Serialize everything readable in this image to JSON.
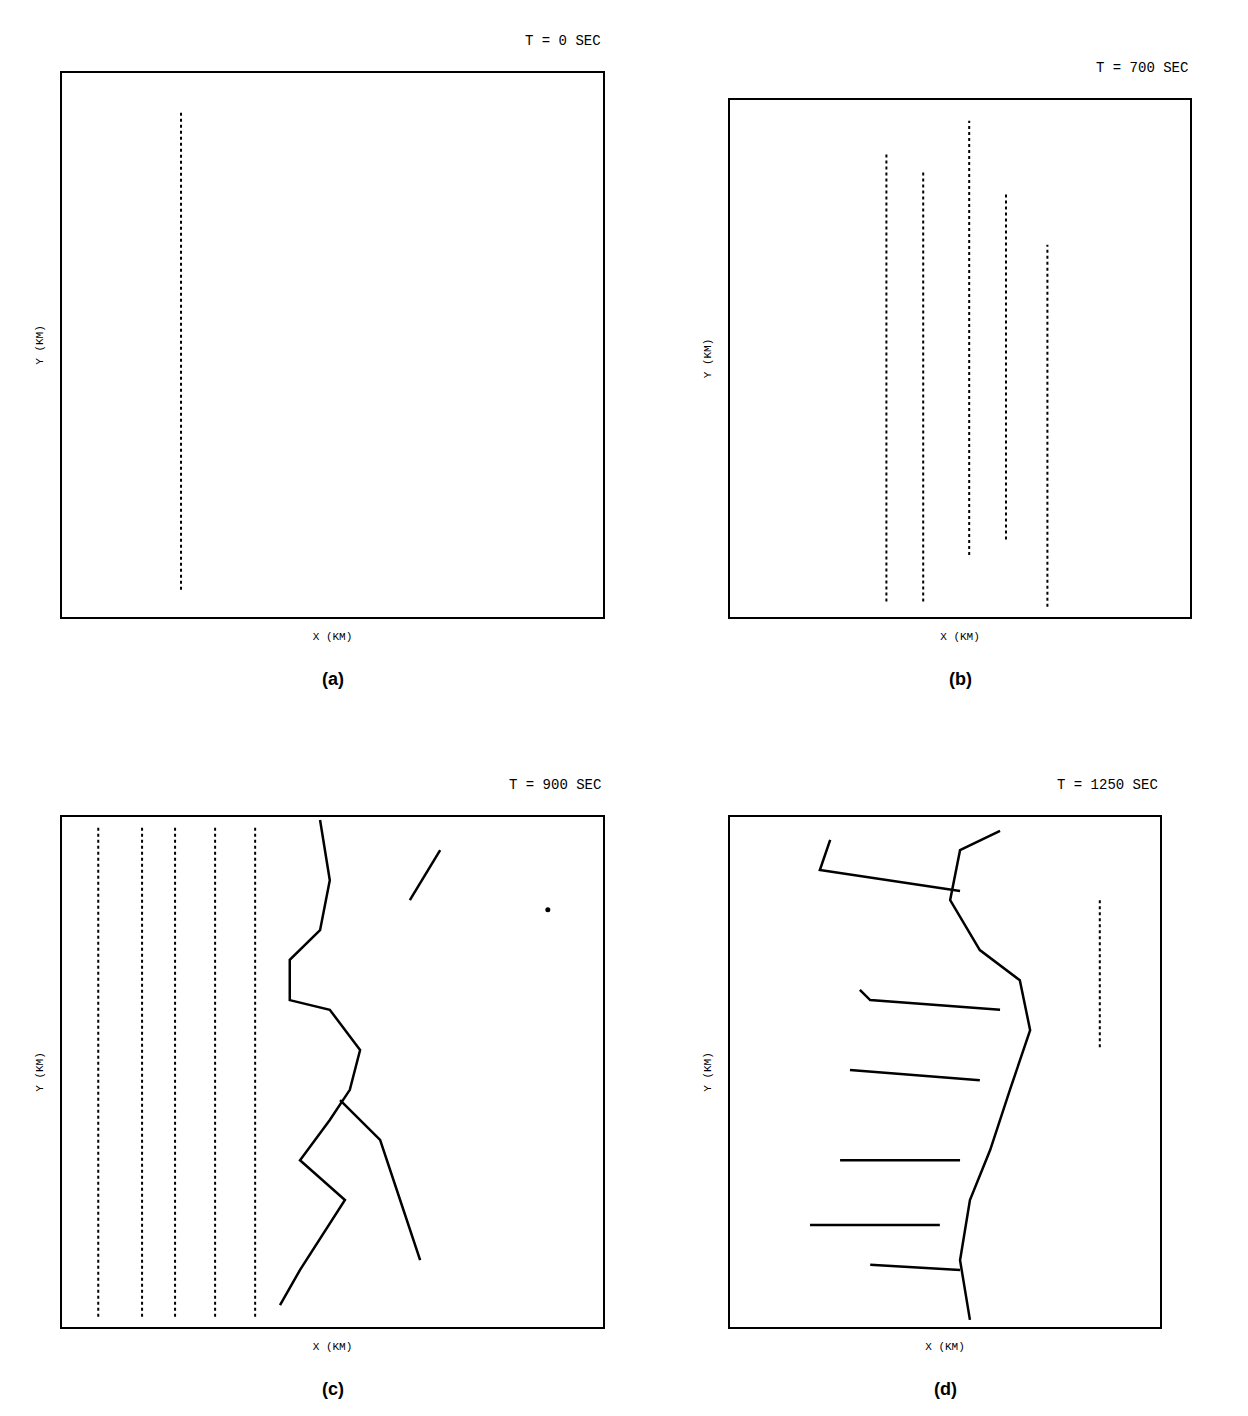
{
  "chart_data": [
    {
      "type": "line",
      "title": "T = 0 SEC",
      "label": "(a)",
      "x_label": "X (KM)",
      "y_label": "Y (KM)",
      "xlim": [
        0,
        10
      ],
      "ylim": [
        0,
        10
      ],
      "tick_labels": false,
      "color": "#000000",
      "series": [
        {
          "line_style": "dot",
          "x": [
            2.2,
            2.2
          ],
          "y": [
            0.5,
            9.3
          ]
        }
      ]
    },
    {
      "type": "line",
      "title": "T = 700 SEC",
      "label": "(b)",
      "x_label": "X (KM)",
      "y_label": "Y (KM)",
      "xlim": [
        0,
        10
      ],
      "ylim": [
        0,
        10
      ],
      "tick_labels": false,
      "color": "#000000",
      "series": [
        {
          "line_style": "dot",
          "x": [
            3.4,
            3.4
          ],
          "y": [
            0.3,
            9.0
          ]
        },
        {
          "line_style": "dot",
          "x": [
            4.2,
            4.2
          ],
          "y": [
            0.3,
            8.6
          ]
        },
        {
          "line_style": "dot",
          "x": [
            5.2,
            5.2
          ],
          "y": [
            1.2,
            9.6
          ]
        },
        {
          "line_style": "dot",
          "x": [
            6.0,
            6.0
          ],
          "y": [
            1.5,
            8.2
          ]
        },
        {
          "line_style": "dot",
          "x": [
            6.9,
            6.9
          ],
          "y": [
            0.2,
            7.2
          ]
        }
      ]
    },
    {
      "type": "line",
      "title": "T = 900 SEC",
      "label": "(c)",
      "x_label": "X (KM)",
      "y_label": "Y (KM)",
      "xlim": [
        0,
        10
      ],
      "ylim": [
        0,
        10
      ],
      "tick_labels": false,
      "color": "#000000",
      "series": [
        {
          "line_style": "dot",
          "x": [
            0.67,
            0.67
          ],
          "y": [
            0.2,
            9.8
          ]
        },
        {
          "line_style": "dot",
          "x": [
            1.48,
            1.48
          ],
          "y": [
            0.2,
            9.8
          ]
        },
        {
          "line_style": "dot",
          "x": [
            2.09,
            2.09
          ],
          "y": [
            0.2,
            9.8
          ]
        },
        {
          "line_style": "dot",
          "x": [
            2.83,
            2.83
          ],
          "y": [
            0.2,
            9.8
          ]
        },
        {
          "line_style": "dot",
          "x": [
            3.57,
            3.57
          ],
          "y": [
            0.2,
            9.8
          ]
        },
        {
          "line_style": "solid",
          "x": [
            4.03,
            4.4,
            5.23,
            4.4,
            4.95,
            5.32,
            5.51,
            4.95,
            4.21,
            4.21,
            4.77,
            4.95,
            4.77
          ],
          "y": [
            0.43,
            1.12,
            2.49,
            3.27,
            4.06,
            4.65,
            5.43,
            6.22,
            6.41,
            7.2,
            7.78,
            8.76,
            9.94
          ]
        },
        {
          "line_style": "solid",
          "x": [
            5.14,
            5.88,
            6.25,
            6.62
          ],
          "y": [
            4.45,
            3.67,
            2.49,
            1.31
          ]
        },
        {
          "line_style": "solid",
          "x": [
            6.43,
            6.99
          ],
          "y": [
            8.37,
            9.35
          ]
        },
        {
          "line_style": "none",
          "marker": "dot",
          "x": [
            8.98
          ],
          "y": [
            8.18
          ]
        }
      ]
    },
    {
      "type": "line",
      "title": "T = 1250 SEC",
      "label": "(d)",
      "x_label": "X (KM)",
      "y_label": "Y (KM)",
      "xlim": [
        0,
        10
      ],
      "ylim": [
        0,
        10
      ],
      "tick_labels": false,
      "color": "#000000",
      "series": [
        {
          "line_style": "solid",
          "x": [
            6.28,
            5.35,
            5.12,
            5.81,
            6.74,
            6.98,
            6.51,
            6.05,
            5.58,
            5.35,
            5.58
          ],
          "y": [
            9.73,
            9.35,
            8.37,
            7.39,
            6.8,
            5.82,
            4.65,
            3.47,
            2.49,
            1.31,
            0.14
          ]
        },
        {
          "line_style": "solid",
          "x": [
            5.35,
            2.09,
            2.33
          ],
          "y": [
            8.55,
            8.96,
            9.55
          ]
        },
        {
          "line_style": "solid",
          "x": [
            6.28,
            3.26,
            3.02
          ],
          "y": [
            6.22,
            6.41,
            6.61
          ]
        },
        {
          "line_style": "solid",
          "x": [
            5.81,
            2.79
          ],
          "y": [
            4.84,
            5.04
          ]
        },
        {
          "line_style": "solid",
          "x": [
            5.35,
            2.56
          ],
          "y": [
            3.27,
            3.27
          ]
        },
        {
          "line_style": "solid",
          "x": [
            4.88,
            1.86
          ],
          "y": [
            2.0,
            2.0
          ]
        },
        {
          "line_style": "solid",
          "x": [
            5.35,
            3.26
          ],
          "y": [
            1.12,
            1.22
          ]
        },
        {
          "line_style": "dot",
          "x": [
            8.6,
            8.6
          ],
          "y": [
            8.37,
            5.43
          ]
        }
      ]
    }
  ]
}
